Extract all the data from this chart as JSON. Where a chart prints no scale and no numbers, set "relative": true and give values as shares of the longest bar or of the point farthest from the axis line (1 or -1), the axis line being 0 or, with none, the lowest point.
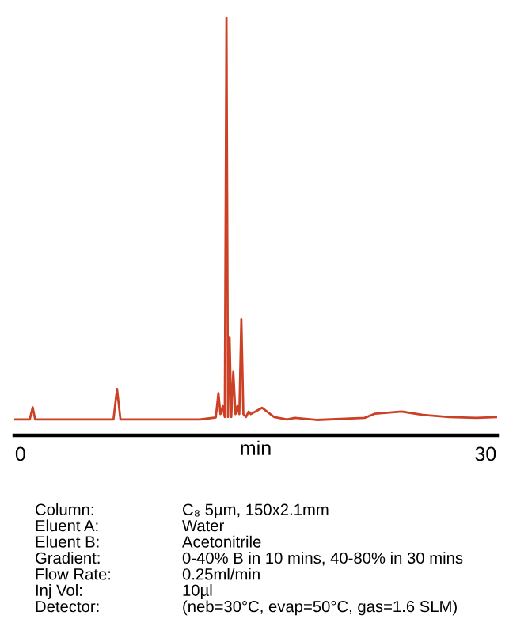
{
  "chart_data": {
    "type": "line",
    "relative": true,
    "xlabel": "min",
    "xlim": [
      -0.4,
      30.75
    ],
    "xticks": [
      0,
      30
    ],
    "grid": false,
    "legend": false,
    "marker": "none",
    "line_style": "solid",
    "tick_labels": "x",
    "series": [
      {
        "color": "#cc4125",
        "x": [
          -0.4,
          0.6,
          0.79,
          0.95,
          6.0,
          6.23,
          6.45,
          11.57,
          12.6,
          12.77,
          12.9,
          13.05,
          13.18,
          13.29,
          13.39,
          13.49,
          13.6,
          13.73,
          13.87,
          14.0,
          14.12,
          14.25,
          14.38,
          14.55,
          14.72,
          14.86,
          15.58,
          16.37,
          17.2,
          17.7,
          19.1,
          22.2,
          22.88,
          24.6,
          25.96,
          27.67,
          29.4,
          30.75
        ],
        "values": [
          0.038,
          0.038,
          0.067,
          0.038,
          0.038,
          0.111,
          0.038,
          0.038,
          0.043,
          0.101,
          0.051,
          0.07,
          0.044,
          1.0,
          0.044,
          0.234,
          0.044,
          0.152,
          0.051,
          0.07,
          0.051,
          0.278,
          0.051,
          0.044,
          0.057,
          0.051,
          0.066,
          0.044,
          0.038,
          0.042,
          0.037,
          0.042,
          0.052,
          0.057,
          0.049,
          0.044,
          0.042,
          0.044
        ]
      }
    ],
    "annotations": [
      "Column:",
      "C₈ 5µm, 150x2.1mm",
      "Eluent A:",
      "Water",
      "Eluent B:",
      "Acetonitrile",
      "Gradient:",
      "0-40% B in 10 mins, 40-80% in 30 mins",
      "Flow Rate:",
      "0.25ml/min",
      "Inj Vol:",
      "10µl",
      "Detector:",
      "(neb=30°C, evap=50°C, gas=1.6 SLM)"
    ]
  }
}
